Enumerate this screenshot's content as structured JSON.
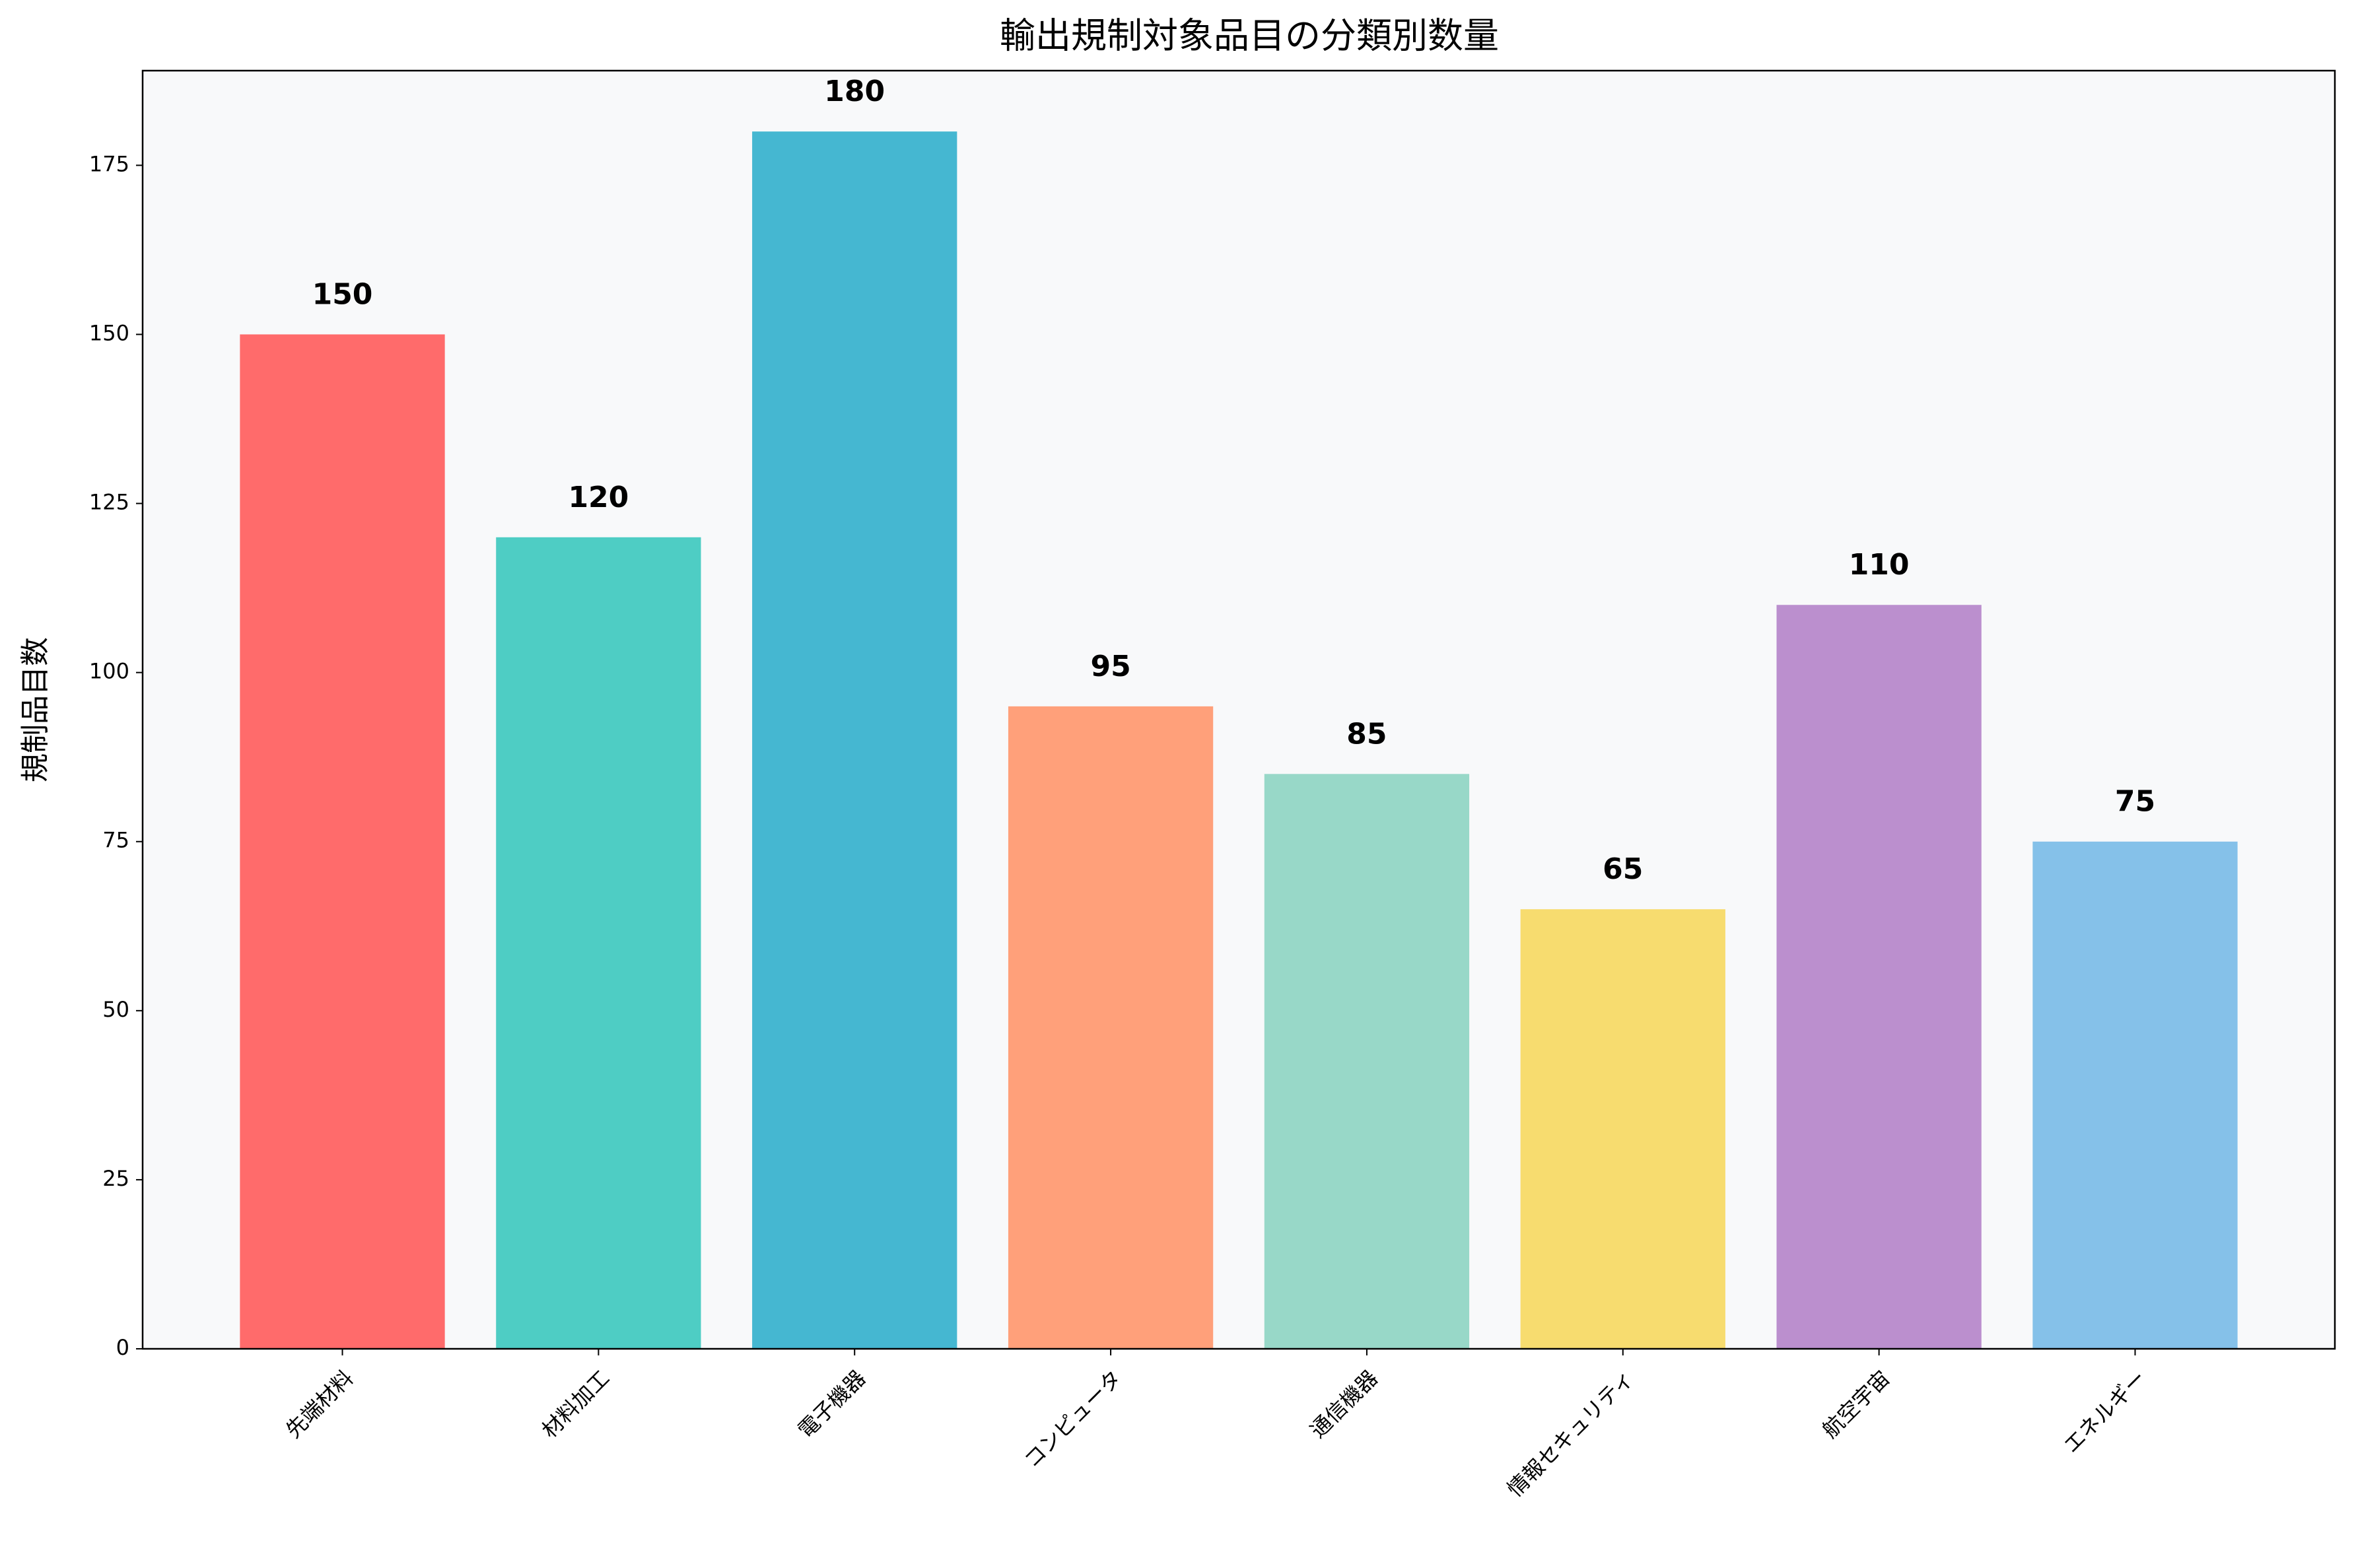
{
  "chart_data": {
    "type": "bar",
    "title": "輸出規制対象品目の分類別数量",
    "y_label": "規制品目数",
    "categories": [
      "先端材料",
      "材料加工",
      "電子機器",
      "コンピュータ",
      "通信機器",
      "情報セキュリティ",
      "航空宇宙",
      "エネルギー"
    ],
    "values": [
      150,
      120,
      180,
      95,
      85,
      65,
      110,
      75
    ],
    "colors": [
      "#FF6B6B",
      "#4ECDC4",
      "#45B7D1",
      "#FFA07A",
      "#98D8C8",
      "#F7DC6F",
      "#BB8FCE",
      "#85C1E9"
    ],
    "ylim": [
      0,
      189
    ],
    "yticks": [
      0,
      25,
      50,
      75,
      100,
      125,
      150,
      175
    ],
    "grid": false
  }
}
